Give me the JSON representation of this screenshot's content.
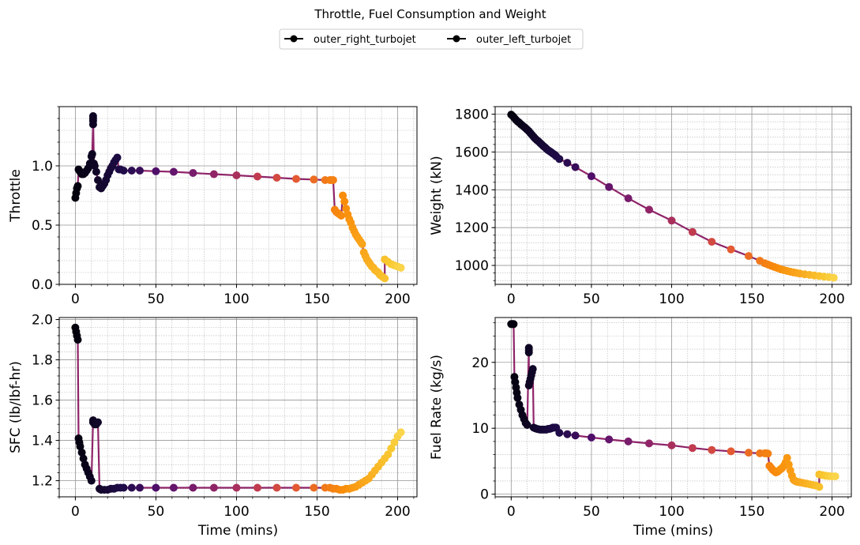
{
  "figure": {
    "suptitle": "Throttle, Fuel Consumption and Weight",
    "legend": [
      {
        "label": "outer_right_turbojet",
        "color": "#000000"
      },
      {
        "label": "outer_left_turbojet",
        "color": "#000000"
      }
    ]
  },
  "colors": {
    "line": "#8f2469",
    "grid_major": "#9a9a9a",
    "grid_minor": "#b5b5b5",
    "colormap": "inferno"
  },
  "chart_data": [
    {
      "type": "line",
      "id": "throttle",
      "xlabel": "",
      "ylabel": "Throttle",
      "xlim": [
        -10,
        212
      ],
      "ylim": [
        0,
        1.5
      ],
      "xticks": [
        0,
        50,
        100,
        150,
        200
      ],
      "yticks": [
        0.0,
        0.5,
        1.0
      ],
      "ytick_labels": [
        "0.0",
        "0.5",
        "1.0"
      ],
      "grid": true,
      "series": [
        {
          "x": [
            0,
            0.5,
            1,
            1.5,
            2,
            2.5,
            3,
            4,
            5,
            6,
            7,
            8,
            9,
            10,
            10.5,
            11,
            11,
            11,
            11,
            11.5,
            12,
            13,
            14,
            15,
            16,
            17,
            18,
            19,
            20,
            21,
            22,
            23,
            24,
            25,
            26,
            27,
            28,
            30,
            35,
            40,
            50,
            61,
            73,
            86,
            100,
            113,
            125,
            137,
            148,
            155,
            158,
            159,
            160,
            161,
            162,
            163,
            164,
            165,
            166,
            167,
            168,
            169,
            170,
            171,
            172,
            173,
            174,
            175,
            176,
            177,
            178,
            179,
            180,
            181,
            182,
            183,
            184,
            185,
            186,
            187,
            188,
            189,
            190,
            191,
            192,
            192,
            194,
            196,
            198,
            200,
            202
          ],
          "y": [
            0.73,
            0.77,
            0.81,
            0.83,
            0.97,
            0.96,
            0.95,
            0.93,
            0.93,
            0.94,
            0.96,
            0.98,
            1.02,
            1.08,
            1.1,
            1.35,
            1.38,
            1.4,
            1.42,
            1.02,
            1.0,
            0.95,
            0.88,
            0.82,
            0.81,
            0.83,
            0.85,
            0.88,
            0.92,
            0.95,
            0.98,
            1.0,
            1.03,
            1.05,
            1.07,
            0.97,
            0.97,
            0.96,
            0.96,
            0.96,
            0.955,
            0.95,
            0.94,
            0.93,
            0.92,
            0.91,
            0.9,
            0.89,
            0.885,
            0.88,
            0.88,
            0.88,
            0.88,
            0.63,
            0.61,
            0.6,
            0.59,
            0.58,
            0.75,
            0.7,
            0.64,
            0.59,
            0.55,
            0.52,
            0.48,
            0.45,
            0.42,
            0.4,
            0.38,
            0.36,
            0.34,
            0.27,
            0.24,
            0.21,
            0.19,
            0.17,
            0.15,
            0.14,
            0.12,
            0.11,
            0.1,
            0.08,
            0.07,
            0.06,
            0.05,
            0.21,
            0.19,
            0.17,
            0.16,
            0.15,
            0.14
          ]
        }
      ]
    },
    {
      "type": "line",
      "id": "weight",
      "xlabel": "",
      "ylabel": "Weight (kN)",
      "xlim": [
        -10,
        212
      ],
      "ylim": [
        900,
        1840
      ],
      "xticks": [
        0,
        50,
        100,
        150,
        200
      ],
      "yticks": [
        1000,
        1200,
        1400,
        1600,
        1800
      ],
      "ytick_labels": [
        "1000",
        "1200",
        "1400",
        "1600",
        "1800"
      ],
      "grid": true,
      "series": [
        {
          "x": [
            0,
            1,
            2,
            3,
            4,
            5,
            6,
            7,
            8,
            9,
            10,
            11,
            12,
            13,
            14,
            15,
            16,
            17,
            18,
            19,
            20,
            21,
            22,
            23,
            24,
            25,
            26,
            27,
            28,
            30,
            35,
            40,
            50,
            61,
            73,
            86,
            100,
            113,
            125,
            137,
            148,
            155,
            158,
            160,
            162,
            164,
            166,
            168,
            170,
            172,
            174,
            176,
            178,
            180,
            183,
            186,
            189,
            192,
            195,
            198,
            201
          ],
          "y": [
            1798,
            1790,
            1780,
            1770,
            1762,
            1755,
            1747,
            1740,
            1733,
            1726,
            1718,
            1710,
            1700,
            1690,
            1680,
            1671,
            1663,
            1656,
            1648,
            1640,
            1632,
            1625,
            1617,
            1610,
            1604,
            1598,
            1592,
            1586,
            1578,
            1563,
            1543,
            1520,
            1472,
            1415,
            1355,
            1295,
            1237,
            1177,
            1125,
            1085,
            1050,
            1025,
            1012,
            1005,
            998,
            992,
            986,
            980,
            975,
            971,
            967,
            963,
            960,
            957,
            953,
            950,
            947,
            944,
            941,
            938,
            935
          ]
        }
      ]
    },
    {
      "type": "line",
      "id": "sfc",
      "xlabel": "Time (mins)",
      "ylabel": "SFC (lb/lbf-hr)",
      "xlim": [
        -10,
        212
      ],
      "ylim": [
        1.12,
        2.01
      ],
      "xticks": [
        0,
        50,
        100,
        150,
        200
      ],
      "yticks": [
        1.2,
        1.4,
        1.6,
        1.8,
        2.0
      ],
      "ytick_labels": [
        "1.2",
        "1.4",
        "1.6",
        "1.8",
        "2.0"
      ],
      "grid": true,
      "series": [
        {
          "x": [
            0,
            0.5,
            1,
            1.5,
            2,
            2.5,
            3,
            4,
            5,
            6,
            7,
            8,
            9,
            10,
            11,
            11,
            12,
            13,
            14,
            15,
            16,
            18,
            20,
            22,
            24,
            26,
            28,
            30,
            35,
            40,
            50,
            61,
            73,
            86,
            100,
            113,
            125,
            137,
            148,
            155,
            158,
            160,
            162,
            164,
            166,
            168,
            170,
            172,
            174,
            176,
            178,
            180,
            182,
            184,
            186,
            188,
            190,
            192,
            194,
            196,
            198,
            200,
            202
          ],
          "y": [
            1.96,
            1.94,
            1.92,
            1.9,
            1.41,
            1.39,
            1.37,
            1.34,
            1.31,
            1.28,
            1.26,
            1.24,
            1.22,
            1.2,
            1.5,
            1.49,
            1.48,
            1.48,
            1.49,
            1.16,
            1.155,
            1.155,
            1.155,
            1.16,
            1.16,
            1.165,
            1.165,
            1.165,
            1.165,
            1.165,
            1.165,
            1.165,
            1.165,
            1.165,
            1.165,
            1.165,
            1.165,
            1.165,
            1.165,
            1.165,
            1.165,
            1.16,
            1.16,
            1.155,
            1.155,
            1.16,
            1.16,
            1.165,
            1.17,
            1.18,
            1.19,
            1.2,
            1.21,
            1.23,
            1.25,
            1.27,
            1.29,
            1.31,
            1.33,
            1.36,
            1.39,
            1.42,
            1.44
          ]
        }
      ]
    },
    {
      "type": "line",
      "id": "fuel_rate",
      "xlabel": "Time (mins)",
      "ylabel": "Fuel Rate (kg/s)",
      "xlim": [
        -10,
        212
      ],
      "ylim": [
        -0.4,
        26.8
      ],
      "xticks": [
        0,
        50,
        100,
        150,
        200
      ],
      "yticks": [
        0,
        10,
        20
      ],
      "ytick_labels": [
        "0",
        "10",
        "20"
      ],
      "grid": true,
      "series": [
        {
          "x": [
            0,
            0.5,
            1,
            1.5,
            2,
            2.5,
            3,
            3.5,
            4,
            5,
            6,
            7,
            8,
            9,
            10,
            11,
            11,
            11,
            11,
            11.5,
            12,
            12.5,
            13,
            13.5,
            14,
            15,
            16,
            17,
            18,
            19,
            20,
            21,
            22,
            23,
            24,
            25,
            26,
            27,
            28,
            30,
            35,
            40,
            50,
            61,
            73,
            86,
            100,
            113,
            125,
            137,
            148,
            155,
            158,
            159,
            160,
            161,
            162,
            163,
            164,
            165,
            166,
            167,
            168,
            169,
            170,
            171,
            172,
            173,
            174,
            175,
            176,
            177,
            178,
            179,
            180,
            182,
            184,
            186,
            188,
            190,
            192,
            192,
            194,
            196,
            198,
            200,
            202
          ],
          "y": [
            25.8,
            25.8,
            25.8,
            25.8,
            17.8,
            17.0,
            16.2,
            15.4,
            14.6,
            13.6,
            12.8,
            12.0,
            11.4,
            10.8,
            10.5,
            22.2,
            21.8,
            21.5,
            16.5,
            17.0,
            17.5,
            18.0,
            18.5,
            19.0,
            10.1,
            10.0,
            9.9,
            9.85,
            9.8,
            9.8,
            9.8,
            9.8,
            9.8,
            9.9,
            9.9,
            10.0,
            10.1,
            10.1,
            10.1,
            9.3,
            9.1,
            8.9,
            8.6,
            8.3,
            8.0,
            7.7,
            7.4,
            7.0,
            6.7,
            6.5,
            6.3,
            6.2,
            6.2,
            6.2,
            6.15,
            4.3,
            4.0,
            3.7,
            3.5,
            3.3,
            3.4,
            3.6,
            3.8,
            4.0,
            4.3,
            4.8,
            5.5,
            4.5,
            3.6,
            2.8,
            2.2,
            2.0,
            1.9,
            1.85,
            1.8,
            1.7,
            1.6,
            1.5,
            1.4,
            1.3,
            1.1,
            3.0,
            2.9,
            2.8,
            2.75,
            2.7,
            2.7
          ]
        }
      ]
    }
  ]
}
